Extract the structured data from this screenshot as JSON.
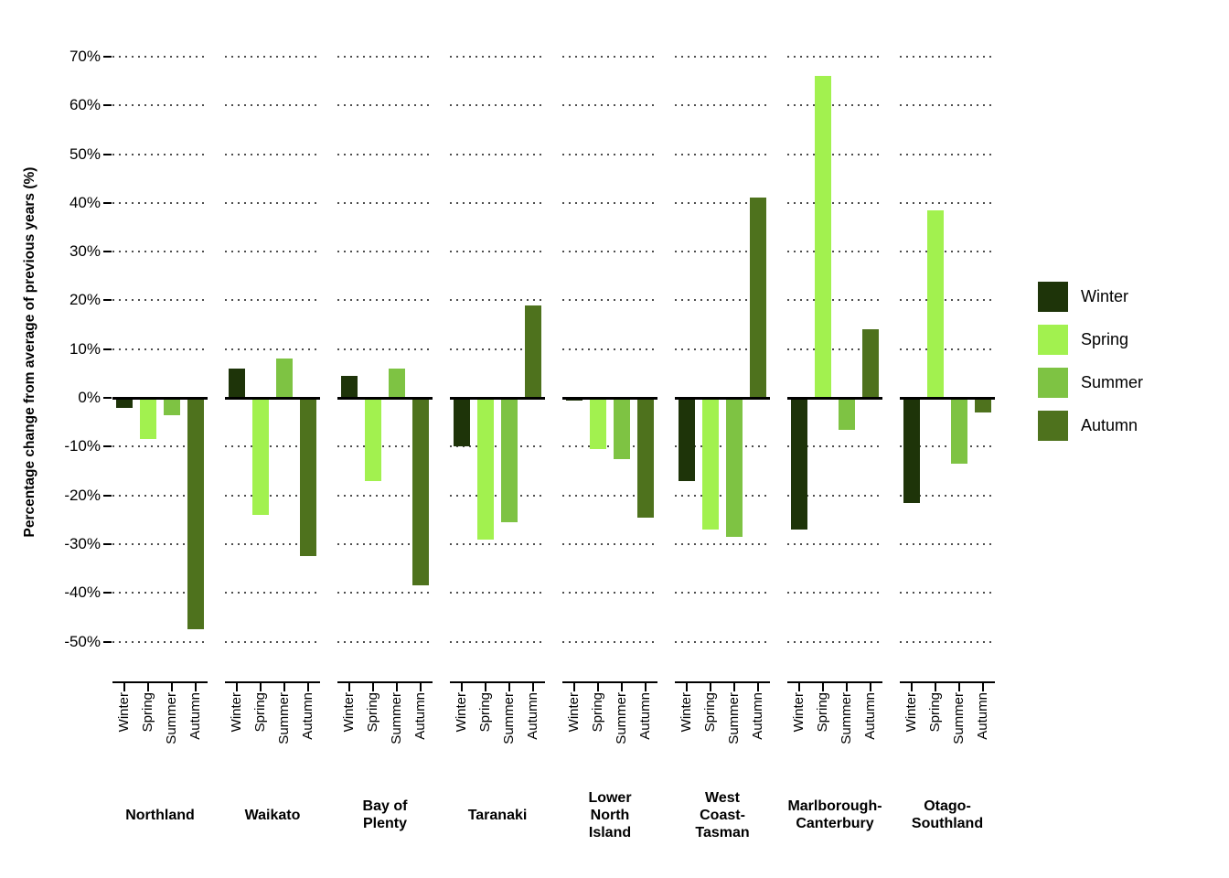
{
  "page": {
    "background": "#ffffff"
  },
  "chart_data": {
    "type": "bar",
    "title": "",
    "ylabel": "Percentage change from average of previous years (%)",
    "ylim": [
      -55,
      75
    ],
    "yticks": [
      70,
      60,
      50,
      40,
      30,
      20,
      10,
      0,
      -10,
      -20,
      -30,
      -40,
      -50
    ],
    "ytick_suffix": "%",
    "grid": "dotted-per-facet",
    "grid_color": "#4d4d4d",
    "axis_color": "#000000",
    "seasons": [
      "Winter",
      "Spring",
      "Summer",
      "Autumn"
    ],
    "season_colors": {
      "Winter": "#1e3409",
      "Spring": "#a2f14f",
      "Summer": "#7ec343",
      "Autumn": "#4e721d"
    },
    "facets": [
      {
        "region": "Northland",
        "region_lines": [
          "Northland"
        ],
        "values": [
          -2,
          -8.5,
          -3.5,
          -47.5
        ]
      },
      {
        "region": "Waikato",
        "region_lines": [
          "Waikato"
        ],
        "values": [
          6,
          -24,
          8,
          -32.5
        ]
      },
      {
        "region": "Bay of Plenty",
        "region_lines": [
          "Bay of",
          "Plenty"
        ],
        "values": [
          4.5,
          -17,
          6,
          -38.5
        ]
      },
      {
        "region": "Taranaki",
        "region_lines": [
          "Taranaki"
        ],
        "values": [
          -10,
          -29,
          -25.5,
          19
        ]
      },
      {
        "region": "Lower North Island",
        "region_lines": [
          "Lower",
          "North",
          "Island"
        ],
        "values": [
          -0.5,
          -10.5,
          -12.5,
          -24.5
        ]
      },
      {
        "region": "West Coast-Tasman",
        "region_lines": [
          "West",
          "Coast-",
          "Tasman"
        ],
        "values": [
          -17,
          -27,
          -28.5,
          41
        ]
      },
      {
        "region": "Marlborough-Canterbury",
        "region_lines": [
          "Marlborough-",
          "Canterbury"
        ],
        "values": [
          -27,
          66,
          -6.5,
          14
        ]
      },
      {
        "region": "Otago-Southland",
        "region_lines": [
          "Otago-",
          "Southland"
        ],
        "values": [
          -21.5,
          38.5,
          -13.5,
          -3
        ]
      }
    ],
    "legend": {
      "position": "right",
      "items": [
        "Winter",
        "Spring",
        "Summer",
        "Autumn"
      ]
    }
  }
}
